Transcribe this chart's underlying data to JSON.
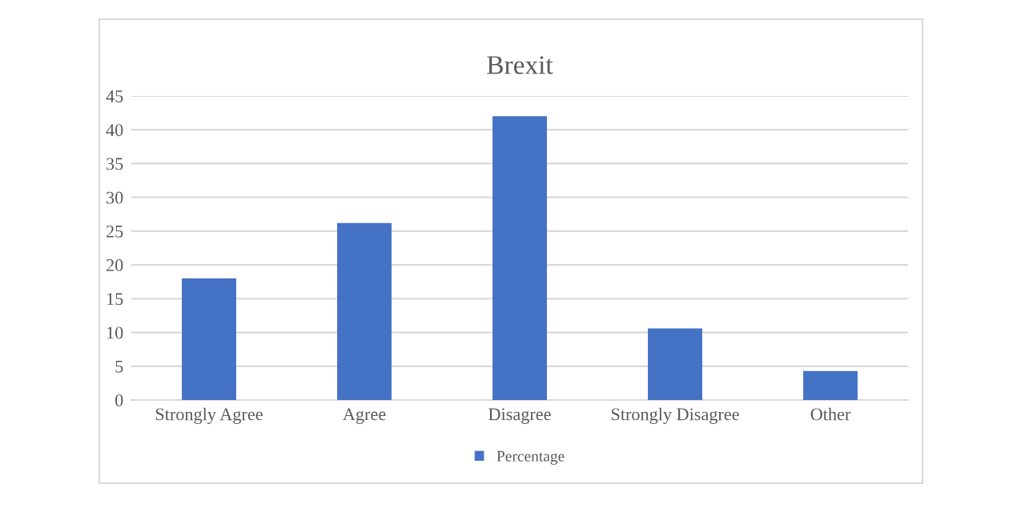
{
  "chart_data": {
    "type": "bar",
    "title": "Brexit",
    "categories": [
      "Strongly Agree",
      "Agree",
      "Disagree",
      "Strongly Disagree",
      "Other"
    ],
    "series": [
      {
        "name": "Percentage",
        "color": "#4472c4",
        "values": [
          18,
          26.2,
          42,
          10.6,
          4.3
        ]
      }
    ],
    "ylim": [
      0,
      45
    ],
    "yticks": [
      0,
      5,
      10,
      15,
      20,
      25,
      30,
      35,
      40,
      45
    ],
    "grid": "y",
    "legend": "bottom"
  }
}
